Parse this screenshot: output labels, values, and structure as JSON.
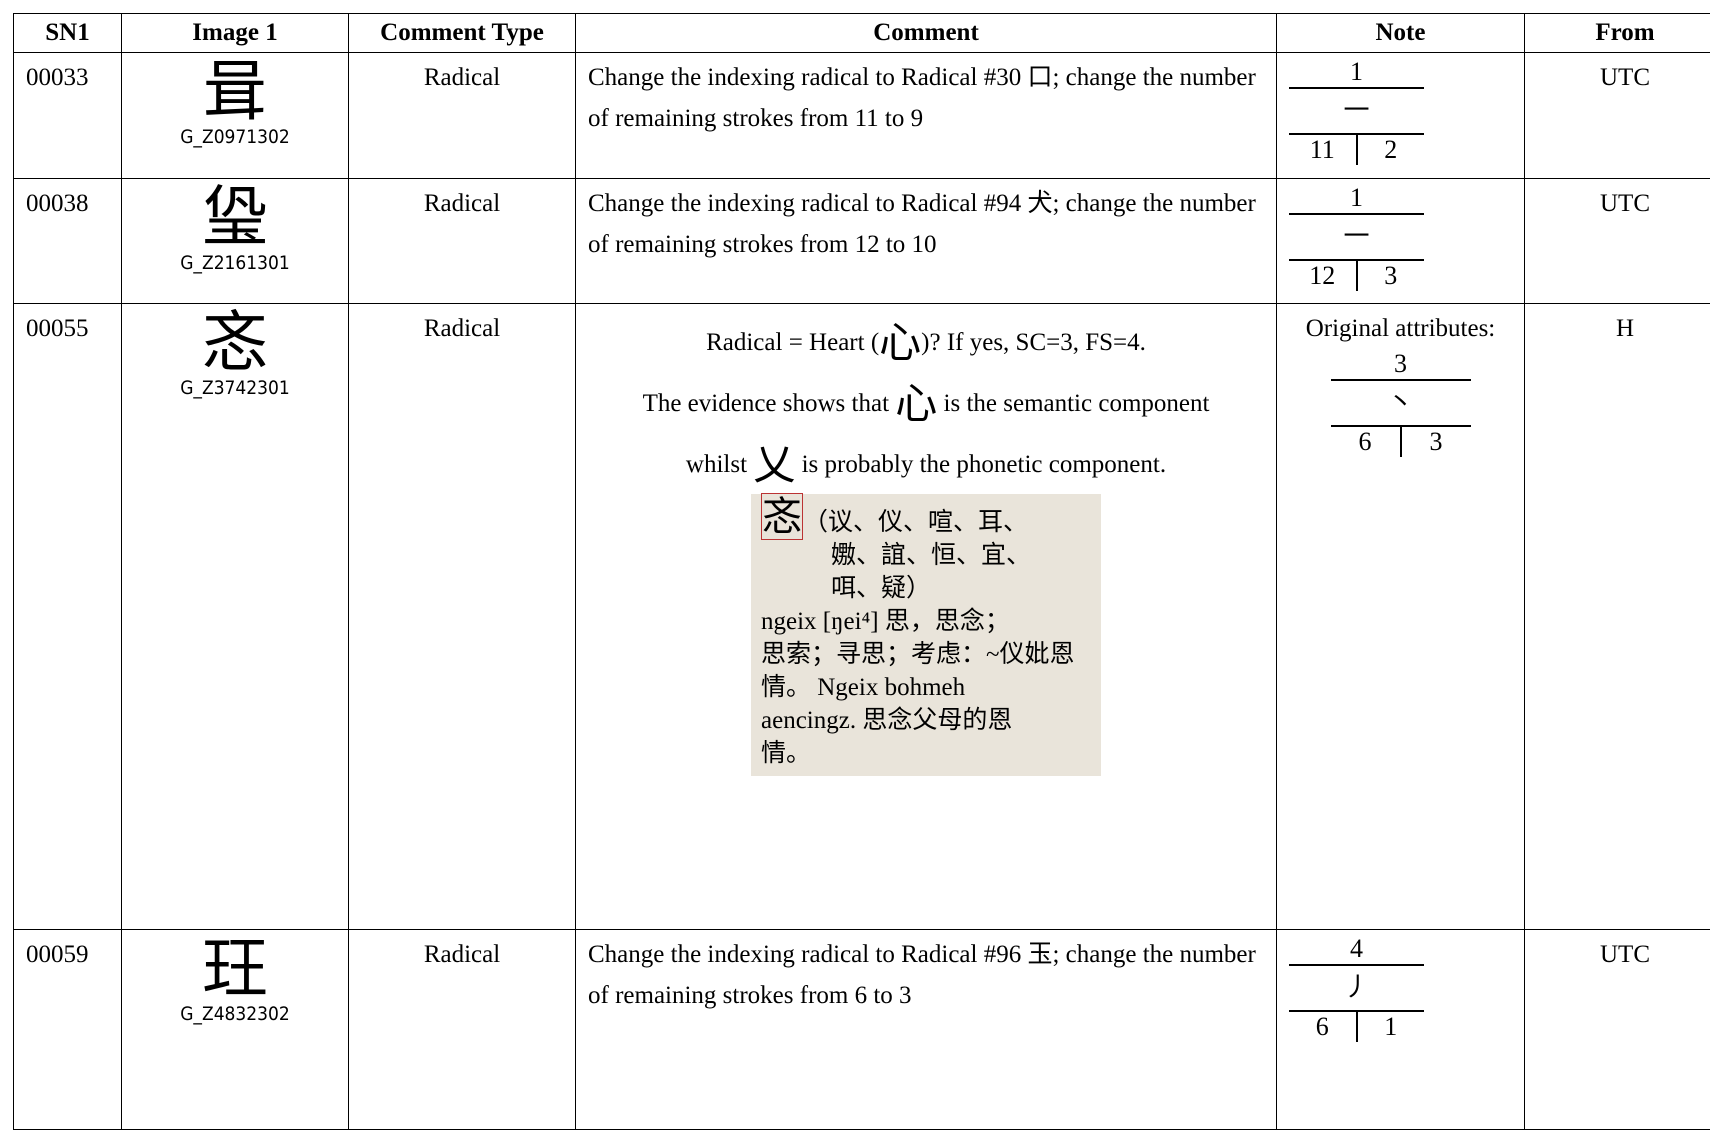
{
  "header": {
    "columns": [
      "SN1",
      "Image 1",
      "Comment Type",
      "Comment",
      "Note",
      "From"
    ]
  },
  "rows": [
    {
      "sn": "00033",
      "glyph": "咠",
      "code": "G_Z0971302",
      "type": "Radical",
      "comment": [
        "Change the indexing radical to Radical #30 口; change the number of remaining strokes from 11 to 9"
      ],
      "note": {
        "radical": "1",
        "stroke": "一",
        "strokes": "11",
        "extra": "2"
      },
      "from": "UTC"
    },
    {
      "sn": "00038",
      "glyph": "㺸",
      "code": "G_Z2161301",
      "type": "Radical",
      "comment": [
        "Change the indexing radical to Radical #94 犬; change the number of remaining strokes from 12 to 10"
      ],
      "note": {
        "radical": "1",
        "stroke": "一",
        "strokes": "12",
        "extra": "3"
      },
      "from": "UTC"
    },
    {
      "sn": "00055",
      "glyph": "忞",
      "code": "G_Z3742301",
      "type": "Radical",
      "comment_lines": [
        [
          "Radical = Heart (",
          "心",
          ")?    If yes, SC=3, FS=4."
        ],
        [
          "The evidence shows that ",
          "心",
          " is the semantic component"
        ],
        [
          "whilst ",
          "乂",
          " is probably the phonetic component."
        ]
      ],
      "scan": {
        "headword": "忞",
        "lines": [
          "（议、仪、喧、耳、",
          "嫐、誼、恒、宜、",
          "咡、疑）",
          "ngeix [ŋei⁴]  思，思念；",
          "思索；寻思；考虑：~仪妣恩",
          "情。 Ngeix  bohmeh",
          "aencingz.  思念父母的恩",
          "情。"
        ]
      },
      "note": {
        "label": "Original attributes:",
        "radical": "3",
        "stroke": "丶",
        "strokes": "6",
        "extra": "3"
      },
      "from": "H"
    },
    {
      "sn": "00059",
      "glyph": "玨",
      "code": "G_Z4832302",
      "type": "Radical",
      "comment": [
        "Change the indexing radical to Radical #96 玉; change the number of remaining strokes from 6 to 3"
      ],
      "note": {
        "radical": "4",
        "stroke": "丿",
        "strokes": "6",
        "extra": "1"
      },
      "from": "UTC"
    }
  ]
}
